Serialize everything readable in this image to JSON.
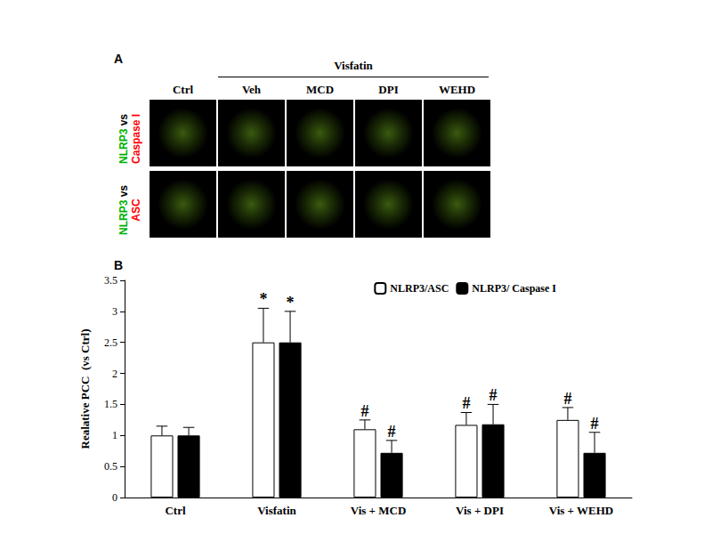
{
  "panel_a": {
    "letter": "A",
    "group_label": "Visfatin",
    "columns": [
      "Ctrl",
      "Veh",
      "MCD",
      "DPI",
      "WEHD"
    ],
    "rows": [
      {
        "stain_green": "NLRP3",
        "joiner": "vs",
        "stain_red": "Caspase I"
      },
      {
        "stain_green": "NLRP3",
        "joiner": "vs",
        "stain_red": "ASC"
      }
    ]
  },
  "chart_data": {
    "type": "bar",
    "panel_letter": "B",
    "y_label": "Realative PCC  (vs Ctrl)",
    "categories": [
      "Ctrl",
      "Visfatin",
      "Vis + MCD",
      "Vis + DPI",
      "Vis + WEHD"
    ],
    "series": [
      {
        "name": "NLRP3/ASC",
        "color": "#ffffff",
        "values": [
          1,
          2.5,
          1.1,
          1.17,
          1.25
        ],
        "errors": [
          0.15,
          0.55,
          0.15,
          0.2,
          0.2
        ],
        "marks": [
          null,
          "*",
          "#",
          "#",
          "#"
        ]
      },
      {
        "name": "NLRP3/ Caspase I",
        "color": "#000000",
        "values": [
          1,
          2.5,
          0.72,
          1.18,
          0.72
        ],
        "errors": [
          0.13,
          0.5,
          0.2,
          0.32,
          0.33
        ],
        "marks": [
          null,
          "*",
          "#",
          "#",
          "#"
        ]
      }
    ],
    "ylim": [
      0,
      3.5
    ],
    "yticks": [
      0,
      0.5,
      1,
      1.5,
      2,
      2.5,
      3,
      3.5
    ],
    "legend": "upper right",
    "grid": false
  }
}
